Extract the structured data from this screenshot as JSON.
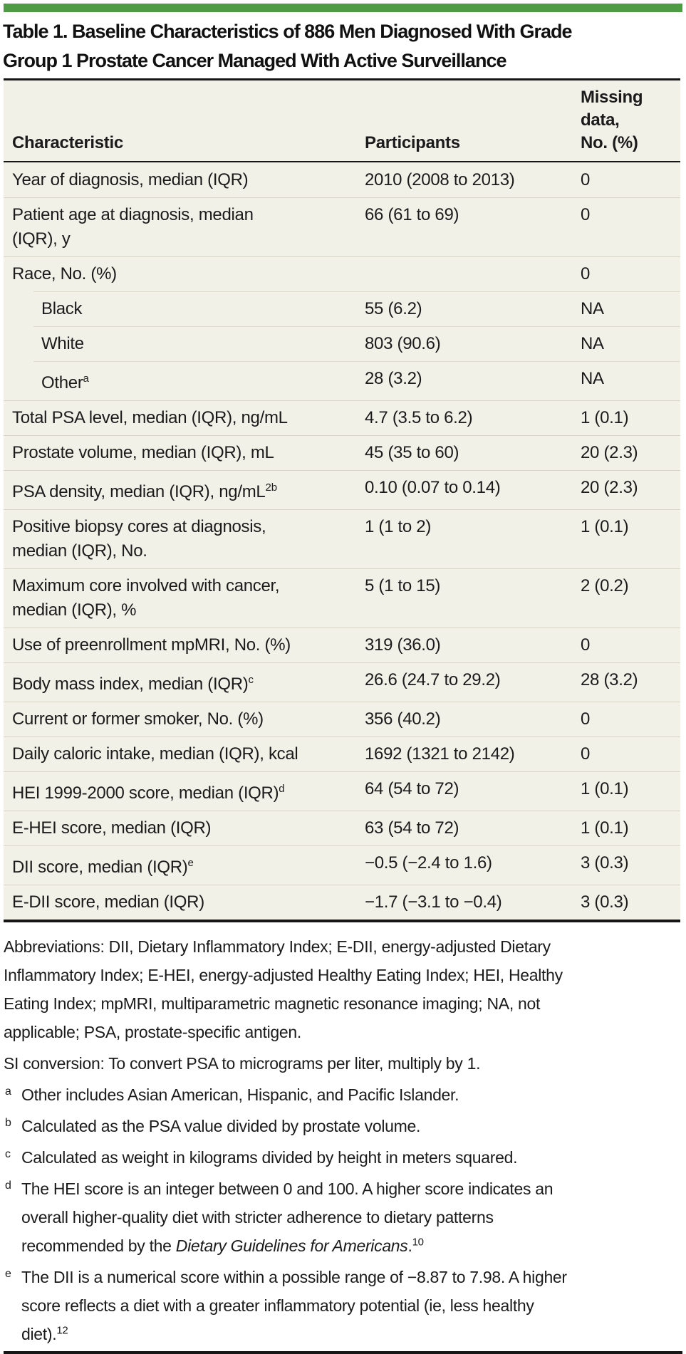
{
  "theme": {
    "accent_green": "#4f9b45",
    "panel_background": "#f2f1e8",
    "rule_dark": "#161616",
    "row_divider": "#d9d6c8",
    "sub_row_divider": "#dedbcd",
    "text_color": "#1b1b1b"
  },
  "title": {
    "line1": "Table 1. Baseline Characteristics of 886 Men Diagnosed With Grade",
    "line2": "Group 1 Prostate Cancer Managed With Active Surveillance"
  },
  "table": {
    "columns": [
      {
        "label": "Characteristic"
      },
      {
        "label": "Participants"
      },
      {
        "label": "Missing\ndata,\nNo. (%)"
      }
    ],
    "rows": [
      {
        "label": "Year of diagnosis, median (IQR)",
        "sup": "",
        "participants": "2010 (2008 to 2013)",
        "missing": "0",
        "indent": false
      },
      {
        "label": "Patient age at diagnosis, median\n(IQR), y",
        "sup": "",
        "participants": "66 (61 to 69)",
        "missing": "0",
        "indent": false
      },
      {
        "label": "Race, No. (%)",
        "sup": "",
        "participants": "",
        "missing": "0",
        "indent": false
      },
      {
        "label": "Black",
        "sup": "",
        "participants": "55 (6.2)",
        "missing": "NA",
        "indent": true
      },
      {
        "label": "White",
        "sup": "",
        "participants": "803 (90.6)",
        "missing": "NA",
        "indent": true
      },
      {
        "label": "Other",
        "sup": "a",
        "participants": "28 (3.2)",
        "missing": "NA",
        "indent": true
      },
      {
        "label": "Total PSA level, median (IQR), ng/mL",
        "sup": "",
        "participants": "4.7 (3.5 to 6.2)",
        "missing": "1 (0.1)",
        "indent": false
      },
      {
        "label": "Prostate volume, median (IQR), mL",
        "sup": "",
        "participants": "45 (35 to 60)",
        "missing": "20 (2.3)",
        "indent": false
      },
      {
        "label": "PSA density, median (IQR), ng/mL",
        "sup": "2b",
        "participants": "0.10 (0.07 to 0.14)",
        "missing": "20 (2.3)",
        "indent": false
      },
      {
        "label": "Positive biopsy cores at diagnosis,\nmedian (IQR), No.",
        "sup": "",
        "participants": "1 (1 to 2)",
        "missing": "1 (0.1)",
        "indent": false
      },
      {
        "label": "Maximum core involved with cancer,\nmedian (IQR), %",
        "sup": "",
        "participants": "5 (1 to 15)",
        "missing": "2 (0.2)",
        "indent": false
      },
      {
        "label": "Use of preenrollment mpMRI, No. (%)",
        "sup": "",
        "participants": "319 (36.0)",
        "missing": "0",
        "indent": false
      },
      {
        "label": "Body mass index, median (IQR)",
        "sup": "c",
        "participants": "26.6 (24.7 to 29.2)",
        "missing": "28 (3.2)",
        "indent": false
      },
      {
        "label": "Current or former smoker, No. (%)",
        "sup": "",
        "participants": "356 (40.2)",
        "missing": "0",
        "indent": false
      },
      {
        "label": "Daily caloric intake, median (IQR), kcal",
        "sup": "",
        "participants": "1692 (1321 to 2142)",
        "missing": "0",
        "indent": false
      },
      {
        "label": "HEI 1999-2000 score, median (IQR)",
        "sup": "d",
        "participants": "64 (54 to 72)",
        "missing": "1 (0.1)",
        "indent": false
      },
      {
        "label": "E-HEI score, median (IQR)",
        "sup": "",
        "participants": "63 (54 to 72)",
        "missing": "1 (0.1)",
        "indent": false
      },
      {
        "label": "DII score, median (IQR)",
        "sup": "e",
        "participants": "−0.5 (−2.4 to 1.6)",
        "missing": "3 (0.3)",
        "indent": false
      },
      {
        "label": "E-DII score, median (IQR)",
        "sup": "",
        "participants": "−1.7 (−3.1 to −0.4)",
        "missing": "3 (0.3)",
        "indent": false
      }
    ]
  },
  "footnotes": [
    {
      "marker": "",
      "parts": [
        {
          "t": "Abbreviations: DII, Dietary Inflammatory Index; E-DII, energy-adjusted Dietary\nInflammatory Index; E-HEI, energy-adjusted Healthy Eating Index; HEI, Healthy\nEating Index; mpMRI, multiparametric magnetic resonance imaging; NA, not\napplicable; PSA, prostate-specific antigen.",
          "style": ""
        }
      ]
    },
    {
      "marker": "",
      "parts": [
        {
          "t": "SI conversion: To convert PSA to micrograms per liter, multiply by 1.",
          "style": ""
        }
      ]
    },
    {
      "marker": "a",
      "parts": [
        {
          "t": "Other includes Asian American, Hispanic, and Pacific Islander.",
          "style": ""
        }
      ]
    },
    {
      "marker": "b",
      "parts": [
        {
          "t": "Calculated as the PSA value divided by prostate volume.",
          "style": ""
        }
      ]
    },
    {
      "marker": "c",
      "parts": [
        {
          "t": "Calculated as weight in kilograms divided by height in meters squared.",
          "style": ""
        }
      ]
    },
    {
      "marker": "d",
      "parts": [
        {
          "t": "The HEI score is an integer between 0 and 100. A higher score indicates an\noverall higher-quality diet with stricter adherence to dietary patterns\nrecommended by the ",
          "style": ""
        },
        {
          "t": "Dietary Guidelines for Americans",
          "style": "italic"
        },
        {
          "t": ".",
          "style": ""
        },
        {
          "t": "10",
          "style": "sup"
        }
      ]
    },
    {
      "marker": "e",
      "parts": [
        {
          "t": "The DII is a numerical score within a possible range of −8.87 to 7.98. A higher\nscore reflects a diet with a greater inflammatory potential (ie, less healthy\ndiet).",
          "style": ""
        },
        {
          "t": "12",
          "style": "sup"
        }
      ]
    }
  ]
}
